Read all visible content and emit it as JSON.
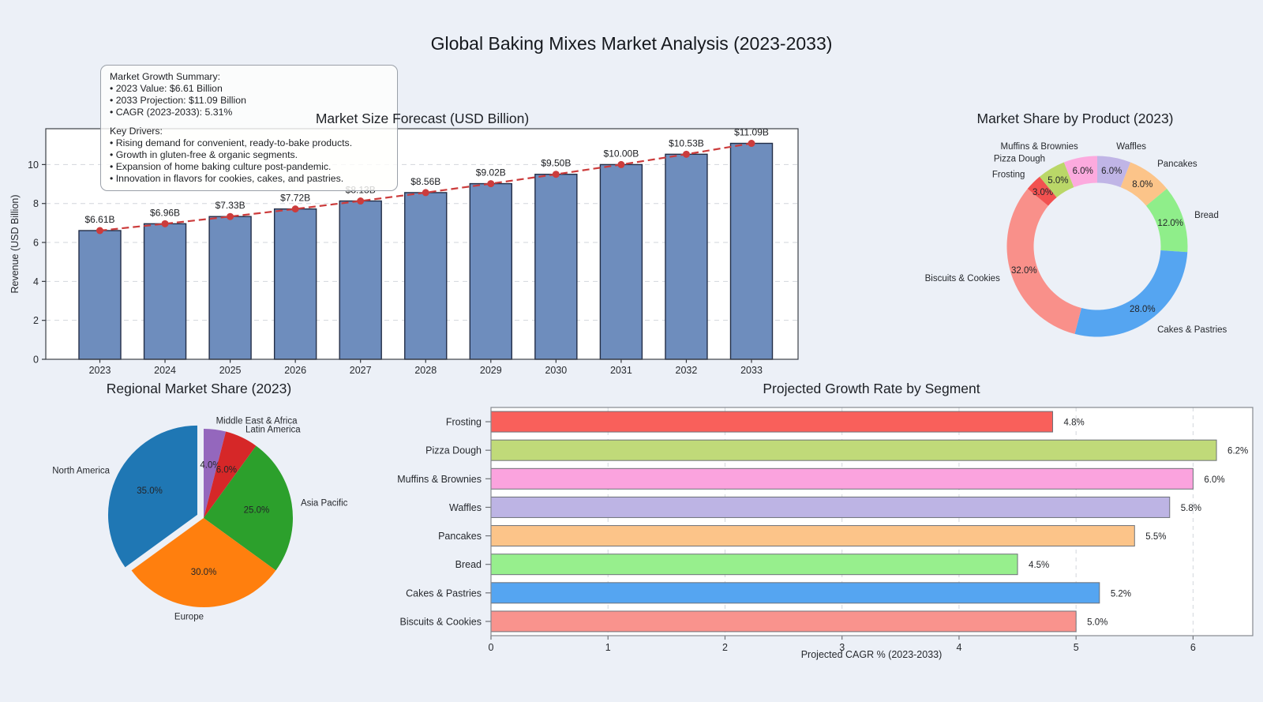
{
  "page": {
    "title": "Global Baking Mixes Market Analysis (2023-2033)",
    "background_color": "#ecf0f7"
  },
  "annotation": {
    "summary_title": "Market Growth Summary:",
    "summary_lines": [
      "• 2023 Value: $6.61 Billion",
      "• 2033 Projection: $11.09 Billion",
      "• CAGR (2023-2033): 5.31%"
    ],
    "drivers_title": "Key Drivers:",
    "drivers_lines": [
      "• Rising demand for convenient, ready-to-bake products.",
      "• Growth in gluten-free & organic segments.",
      "• Expansion of home baking culture post-pandemic.",
      "• Innovation in flavors for cookies, cakes, and pastries."
    ]
  },
  "chart_data": [
    {
      "id": "market_size_forecast",
      "type": "bar",
      "title": "Market Size Forecast (USD Billion)",
      "ylabel": "Revenue (USD Billion)",
      "categories": [
        "2023",
        "2024",
        "2025",
        "2026",
        "2027",
        "2028",
        "2029",
        "2030",
        "2031",
        "2032",
        "2033"
      ],
      "values": [
        6.61,
        6.96,
        7.33,
        7.72,
        8.13,
        8.56,
        9.02,
        9.5,
        10.0,
        10.53,
        11.09
      ],
      "bar_labels": [
        "$6.61B",
        "$6.96B",
        "$7.33B",
        "$7.72B",
        "$8.13B",
        "$8.56B",
        "$9.02B",
        "$9.50B",
        "$10.00B",
        "$10.53B",
        "$11.09B"
      ],
      "yticks": [
        0,
        2,
        4,
        6,
        8,
        10
      ],
      "ylim": [
        0,
        11.8
      ],
      "grid": "horizontal-dashed",
      "bar_color": "#6e8dbd",
      "bar_edge_color": "#232e47",
      "trend_line_color": "#cc3c3c",
      "trend_style": "dashed-with-markers",
      "occluded_label_index": 4
    },
    {
      "id": "market_share_by_product",
      "type": "pie",
      "subtype": "donut",
      "title": "Market Share by Product (2023)",
      "start_angle_deg_from_top": 0,
      "direction": "clockwise",
      "segments": [
        {
          "label": "Waffles",
          "value": 6.0,
          "pct": "6.0%",
          "color": "#c0b5e6"
        },
        {
          "label": "Pancakes",
          "value": 8.0,
          "pct": "8.0%",
          "color": "#fcc489"
        },
        {
          "label": "Bread",
          "value": 12.0,
          "pct": "12.0%",
          "color": "#8fee8a"
        },
        {
          "label": "Cakes & Pastries",
          "value": 28.0,
          "pct": "28.0%",
          "color": "#55a5f1"
        },
        {
          "label": "Biscuits & Cookies",
          "value": 32.0,
          "pct": "32.0%",
          "color": "#f9908a"
        },
        {
          "label": "Frosting",
          "value": 3.0,
          "pct": "3.0%",
          "color": "#f25150"
        },
        {
          "label": "Pizza Dough",
          "value": 5.0,
          "pct": "5.0%",
          "color": "#bad768"
        },
        {
          "label": "Muffins & Brownies",
          "value": 6.0,
          "pct": "6.0%",
          "color": "#fcaade"
        }
      ]
    },
    {
      "id": "regional_market_share",
      "type": "pie",
      "subtype": "pie",
      "title": "Regional Market Share (2023)",
      "start_angle_deg_from_top": 0,
      "direction": "clockwise",
      "segments": [
        {
          "label": "Middle East & Africa",
          "value": 4.0,
          "pct": "4.0%",
          "color": "#9467bd",
          "explode": false
        },
        {
          "label": "Latin America",
          "value": 6.0,
          "pct": "6.0%",
          "color": "#d62728",
          "explode": false
        },
        {
          "label": "Asia Pacific",
          "value": 25.0,
          "pct": "25.0%",
          "color": "#2ca02c",
          "explode": false
        },
        {
          "label": "Europe",
          "value": 30.0,
          "pct": "30.0%",
          "color": "#ff7f0e",
          "explode": false
        },
        {
          "label": "North America",
          "value": 35.0,
          "pct": "35.0%",
          "color": "#1f77b4",
          "explode": true
        }
      ]
    },
    {
      "id": "projected_growth_by_segment",
      "type": "hbar",
      "title": "Projected Growth Rate by Segment",
      "xlabel": "Projected CAGR % (2023-2033)",
      "categories": [
        "Frosting",
        "Pizza Dough",
        "Muffins & Brownies",
        "Waffles",
        "Pancakes",
        "Bread",
        "Cakes & Pastries",
        "Biscuits & Cookies"
      ],
      "values": [
        4.8,
        6.2,
        6.0,
        5.8,
        5.5,
        4.5,
        5.2,
        5.0
      ],
      "labels": [
        "4.8%",
        "6.2%",
        "6.0%",
        "5.8%",
        "5.5%",
        "4.5%",
        "5.2%",
        "5.0%"
      ],
      "colors": [
        "#f9605b",
        "#c0da79",
        "#fba3de",
        "#bdb4e4",
        "#fcc489",
        "#97ef8d",
        "#55a5f1",
        "#f9938d"
      ],
      "bar_edge_color": "#6d7178",
      "xticks": [
        0,
        1,
        2,
        3,
        4,
        5,
        6
      ],
      "xlim": [
        0,
        6.51
      ],
      "grid": "vertical-dashed"
    }
  ]
}
